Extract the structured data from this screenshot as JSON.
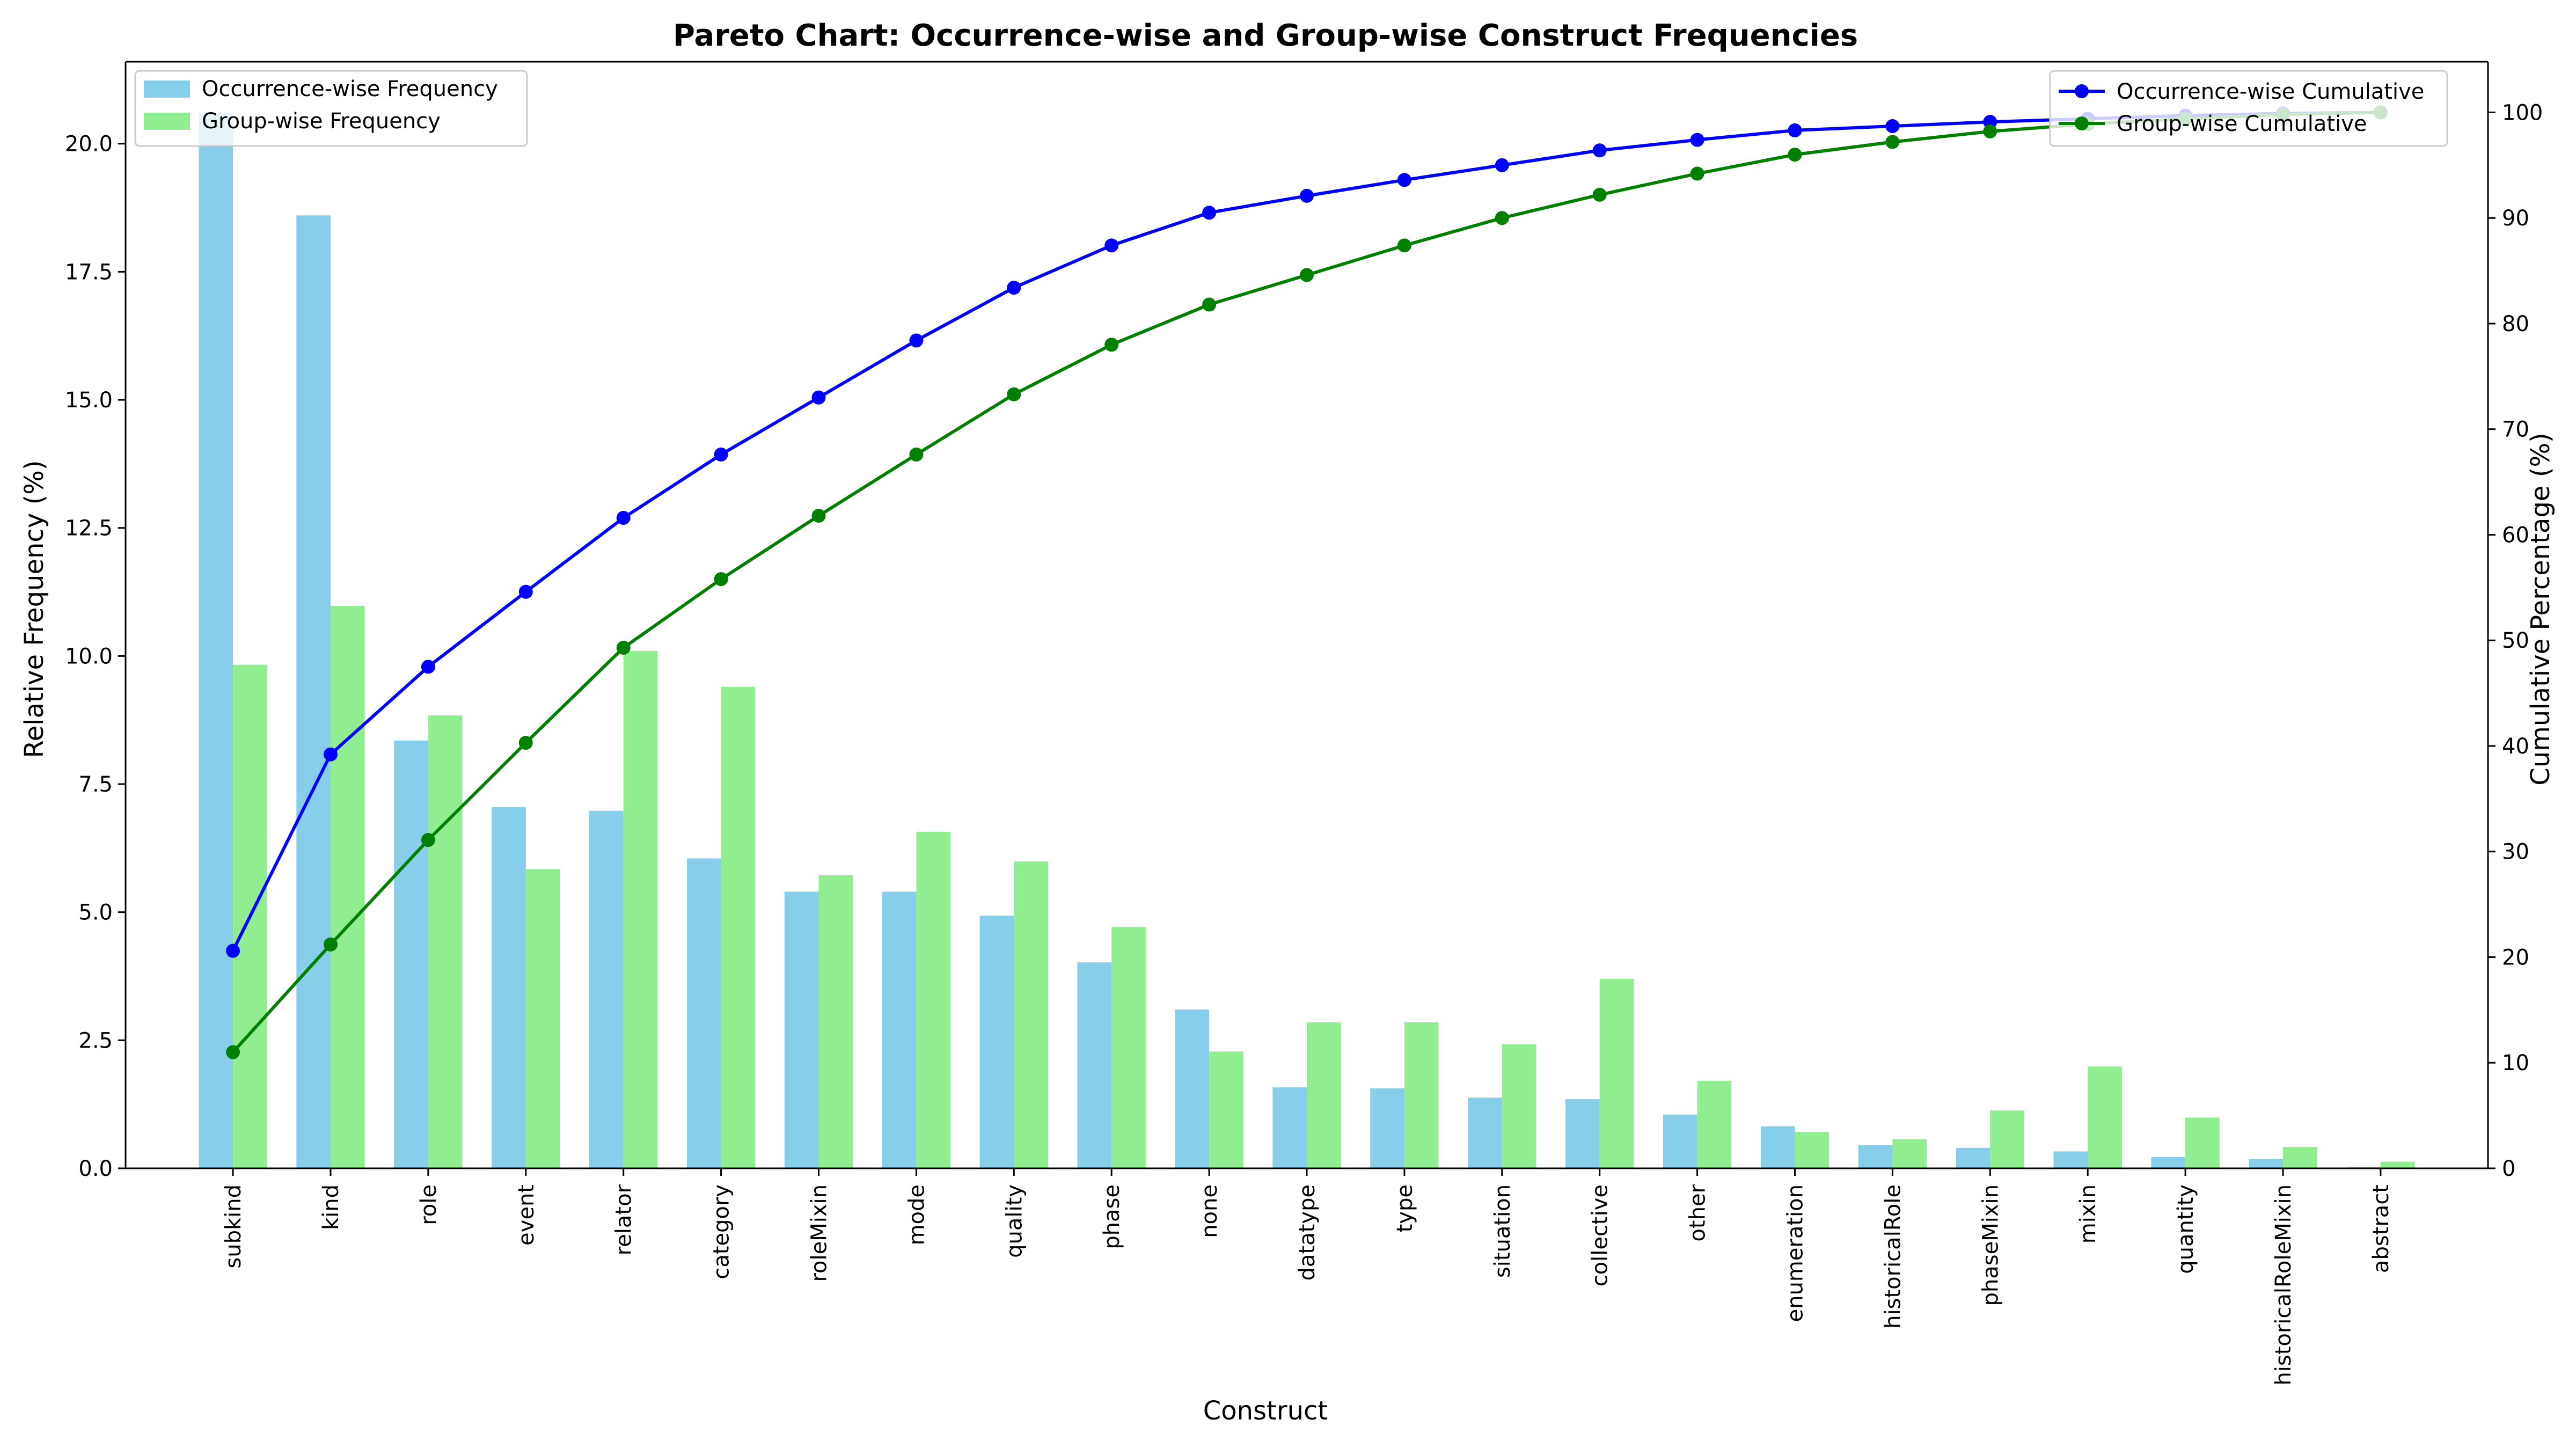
{
  "chart_data": {
    "type": "bar",
    "title": "Pareto Chart: Occurrence-wise and Group-wise Construct Frequencies",
    "xlabel": "Construct",
    "ylabel": "Relative Frequency (%)",
    "y2label": "Cumulative Percentage (%)",
    "ylim": [
      0,
      21.6
    ],
    "y2lim": [
      0,
      104.8
    ],
    "yticks": [
      0.0,
      2.5,
      5.0,
      7.5,
      10.0,
      12.5,
      15.0,
      17.5,
      20.0
    ],
    "y2ticks": [
      0,
      10,
      20,
      30,
      40,
      50,
      60,
      70,
      80,
      90,
      100
    ],
    "grid": false,
    "categories": [
      "subkind",
      "kind",
      "role",
      "event",
      "relator",
      "category",
      "roleMixin",
      "mode",
      "quality",
      "phase",
      "none",
      "datatype",
      "type",
      "situation",
      "collective",
      "other",
      "enumeration",
      "historicalRole",
      "phaseMixin",
      "mixin",
      "quantity",
      "historicalRoleMixin",
      "abstract"
    ],
    "series": [
      {
        "name": "Occurrence-wise Frequency",
        "kind": "bar",
        "axis": "left",
        "color": "#87ceeb",
        "values": [
          20.6,
          18.6,
          8.35,
          7.05,
          6.98,
          6.05,
          5.4,
          5.4,
          4.93,
          4.02,
          3.1,
          1.58,
          1.56,
          1.38,
          1.35,
          1.05,
          0.82,
          0.45,
          0.4,
          0.33,
          0.22,
          0.18,
          0.02
        ]
      },
      {
        "name": "Group-wise Frequency",
        "kind": "bar",
        "axis": "left",
        "color": "#90ee90",
        "values": [
          9.83,
          10.98,
          8.84,
          5.84,
          10.1,
          9.4,
          5.72,
          6.57,
          5.99,
          4.71,
          2.28,
          2.85,
          2.85,
          2.42,
          3.7,
          1.71,
          0.71,
          0.57,
          1.13,
          1.99,
          0.99,
          0.42,
          0.13
        ]
      },
      {
        "name": "Occurrence-wise Cumulative",
        "kind": "line",
        "axis": "right",
        "color": "#0000ff",
        "values": [
          20.6,
          39.2,
          47.5,
          54.6,
          61.6,
          67.6,
          73.0,
          78.4,
          83.4,
          87.4,
          90.5,
          92.1,
          93.6,
          95.0,
          96.4,
          97.4,
          98.3,
          98.7,
          99.1,
          99.4,
          99.7,
          99.9,
          100
        ]
      },
      {
        "name": "Group-wise Cumulative",
        "kind": "line",
        "axis": "right",
        "color": "#008000",
        "values": [
          11.0,
          21.2,
          31.1,
          40.3,
          49.3,
          55.8,
          61.8,
          67.6,
          73.3,
          78.0,
          81.8,
          84.6,
          87.4,
          90.0,
          92.2,
          94.2,
          96.0,
          97.2,
          98.2,
          98.9,
          99.4,
          99.8,
          100
        ]
      }
    ],
    "legends": [
      {
        "placement": "top-left",
        "items": [
          0,
          1
        ]
      },
      {
        "placement": "top-right",
        "items": [
          2,
          3
        ]
      }
    ]
  }
}
